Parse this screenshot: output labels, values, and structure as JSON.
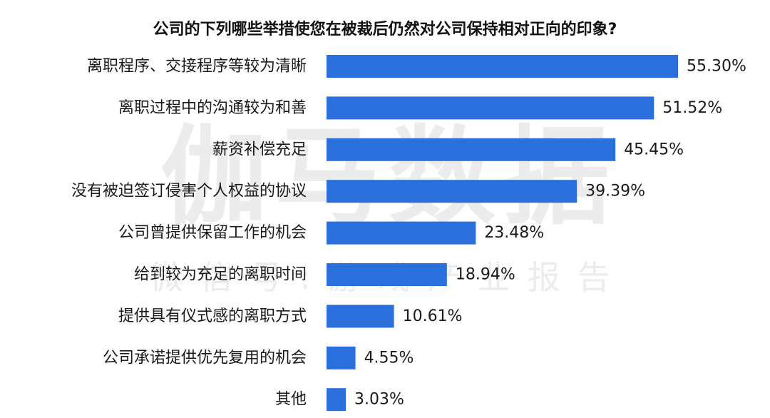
{
  "chart_data": {
    "type": "bar",
    "orientation": "horizontal",
    "title": "公司的下列哪些举措使您在被裁后仍然对公司保持相对正向的印象?",
    "categories": [
      "离职程序、交接程序等较为清晰",
      "离职过程中的沟通较为和善",
      "薪资补偿充足",
      "没有被迫签订侵害个人权益的协议",
      "公司曾提供保留工作的机会",
      "给到较为充足的离职时间",
      "提供具有仪式感的离职方式",
      "公司承诺提供优先复用的机会",
      "其他"
    ],
    "values": [
      55.3,
      51.52,
      45.45,
      39.39,
      23.48,
      18.94,
      10.61,
      4.55,
      3.03
    ],
    "value_labels": [
      "55.30%",
      "51.52%",
      "45.45%",
      "39.39%",
      "23.48%",
      "18.94%",
      "10.61%",
      "4.55%",
      "3.03%"
    ],
    "xlim": [
      0,
      55.3
    ],
    "grid": false,
    "legend": "none",
    "bar_color": "#2a6fdb"
  },
  "watermark": {
    "main": "伽马数据",
    "sub": "微信号:游戏产业报告"
  }
}
